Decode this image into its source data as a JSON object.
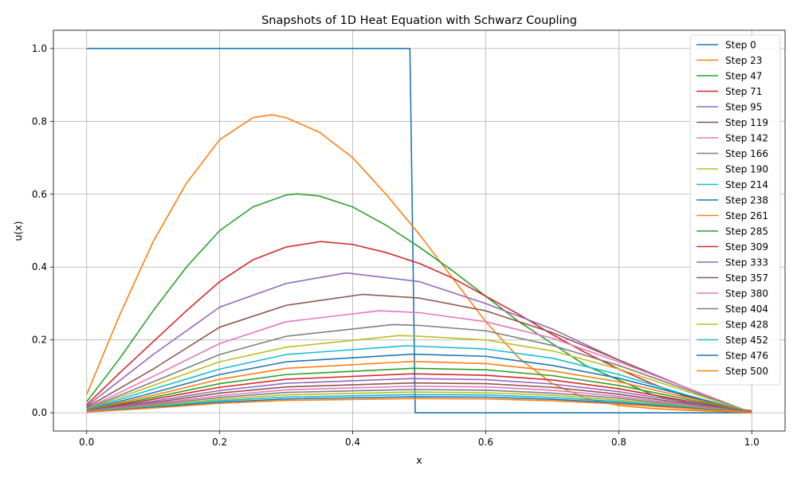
{
  "chart_data": {
    "type": "line",
    "title": "Snapshots of 1D Heat Equation with Schwarz Coupling",
    "xlabel": "x",
    "ylabel": "u(x)",
    "xlim": [
      -0.05,
      1.05
    ],
    "ylim": [
      -0.05,
      1.05
    ],
    "xticks": [
      0.0,
      0.2,
      0.4,
      0.6,
      0.8,
      1.0
    ],
    "xtick_labels": [
      "0.0",
      "0.2",
      "0.4",
      "0.6",
      "0.8",
      "1.0"
    ],
    "yticks": [
      0.0,
      0.2,
      0.4,
      0.6,
      0.8,
      1.0
    ],
    "ytick_labels": [
      "0.0",
      "0.2",
      "0.4",
      "0.6",
      "0.8",
      "1.0"
    ],
    "grid": true,
    "legend_position": "top-right",
    "series": [
      {
        "name": "Step 0",
        "color": "#1f77b4",
        "x": [
          0.0,
          0.486,
          0.494,
          1.0
        ],
        "y": [
          1.0,
          1.0,
          0.0,
          0.0
        ]
      },
      {
        "name": "Step 23",
        "color": "#ff7f0e",
        "x": [
          0.0,
          0.05,
          0.1,
          0.15,
          0.2,
          0.25,
          0.278,
          0.3,
          0.35,
          0.4,
          0.45,
          0.5,
          0.55,
          0.6,
          0.65,
          0.7,
          0.75,
          0.8,
          0.85,
          0.9,
          0.95,
          1.0
        ],
        "y": [
          0.05,
          0.27,
          0.47,
          0.63,
          0.75,
          0.81,
          0.818,
          0.81,
          0.77,
          0.7,
          0.6,
          0.49,
          0.37,
          0.25,
          0.15,
          0.08,
          0.04,
          0.02,
          0.012,
          0.007,
          0.004,
          0.0
        ]
      },
      {
        "name": "Step 47",
        "color": "#2ca02c",
        "x": [
          0.0,
          0.05,
          0.1,
          0.15,
          0.2,
          0.25,
          0.3,
          0.317,
          0.35,
          0.4,
          0.45,
          0.5,
          0.55,
          0.6,
          0.65,
          0.7,
          0.75,
          0.8,
          0.85,
          0.9,
          0.95,
          1.0
        ],
        "y": [
          0.03,
          0.15,
          0.28,
          0.4,
          0.5,
          0.565,
          0.598,
          0.601,
          0.595,
          0.565,
          0.515,
          0.455,
          0.39,
          0.32,
          0.25,
          0.19,
          0.13,
          0.09,
          0.05,
          0.028,
          0.012,
          0.0
        ]
      },
      {
        "name": "Step 71",
        "color": "#d62728",
        "x": [
          0.0,
          0.05,
          0.1,
          0.15,
          0.2,
          0.25,
          0.3,
          0.352,
          0.4,
          0.45,
          0.5,
          0.55,
          0.6,
          0.65,
          0.7,
          0.75,
          0.8,
          0.85,
          0.9,
          0.95,
          1.0
        ],
        "y": [
          0.022,
          0.11,
          0.195,
          0.28,
          0.36,
          0.42,
          0.455,
          0.47,
          0.462,
          0.44,
          0.41,
          0.37,
          0.32,
          0.27,
          0.215,
          0.165,
          0.12,
          0.08,
          0.045,
          0.02,
          0.005
        ]
      },
      {
        "name": "Step 95",
        "color": "#9467bd",
        "x": [
          0.0,
          0.1,
          0.2,
          0.3,
          0.39,
          0.5,
          0.6,
          0.7,
          0.8,
          0.9,
          1.0
        ],
        "y": [
          0.018,
          0.16,
          0.29,
          0.355,
          0.384,
          0.36,
          0.3,
          0.23,
          0.145,
          0.07,
          0.0
        ]
      },
      {
        "name": "Step 119",
        "color": "#8c564b",
        "x": [
          0.0,
          0.1,
          0.2,
          0.3,
          0.415,
          0.5,
          0.6,
          0.7,
          0.8,
          0.9,
          1.0
        ],
        "y": [
          0.015,
          0.12,
          0.235,
          0.295,
          0.325,
          0.315,
          0.28,
          0.22,
          0.145,
          0.07,
          0.0
        ]
      },
      {
        "name": "Step 142",
        "color": "#e377c2",
        "x": [
          0.0,
          0.1,
          0.2,
          0.3,
          0.44,
          0.5,
          0.6,
          0.7,
          0.8,
          0.9,
          1.0
        ],
        "y": [
          0.012,
          0.1,
          0.19,
          0.25,
          0.28,
          0.275,
          0.25,
          0.205,
          0.14,
          0.07,
          0.0
        ]
      },
      {
        "name": "Step 166",
        "color": "#7f7f7f",
        "x": [
          0.0,
          0.1,
          0.2,
          0.3,
          0.46,
          0.5,
          0.6,
          0.7,
          0.8,
          0.9,
          1.0
        ],
        "y": [
          0.011,
          0.085,
          0.16,
          0.21,
          0.242,
          0.24,
          0.225,
          0.185,
          0.13,
          0.065,
          0.0
        ]
      },
      {
        "name": "Step 190",
        "color": "#bcbd22",
        "x": [
          0.0,
          0.1,
          0.2,
          0.3,
          0.47,
          0.5,
          0.6,
          0.7,
          0.8,
          0.9,
          1.0
        ],
        "y": [
          0.01,
          0.075,
          0.14,
          0.18,
          0.212,
          0.21,
          0.2,
          0.17,
          0.12,
          0.06,
          0.0
        ]
      },
      {
        "name": "Step 214",
        "color": "#17becf",
        "x": [
          0.0,
          0.1,
          0.2,
          0.3,
          0.48,
          0.6,
          0.7,
          0.8,
          0.9,
          1.0
        ],
        "y": [
          0.009,
          0.065,
          0.12,
          0.16,
          0.184,
          0.175,
          0.15,
          0.105,
          0.05,
          0.0
        ]
      },
      {
        "name": "Step 238",
        "color": "#1f77b4",
        "x": [
          0.0,
          0.1,
          0.2,
          0.3,
          0.49,
          0.6,
          0.7,
          0.8,
          0.9,
          1.0
        ],
        "y": [
          0.008,
          0.055,
          0.105,
          0.14,
          0.161,
          0.155,
          0.13,
          0.095,
          0.048,
          0.0
        ]
      },
      {
        "name": "Step 261",
        "color": "#ff7f0e",
        "x": [
          0.0,
          0.1,
          0.2,
          0.3,
          0.49,
          0.6,
          0.7,
          0.8,
          0.9,
          1.0
        ],
        "y": [
          0.007,
          0.048,
          0.092,
          0.122,
          0.141,
          0.135,
          0.115,
          0.085,
          0.043,
          0.0
        ]
      },
      {
        "name": "Step 285",
        "color": "#2ca02c",
        "x": [
          0.0,
          0.1,
          0.2,
          0.3,
          0.49,
          0.6,
          0.7,
          0.8,
          0.9,
          1.0
        ],
        "y": [
          0.006,
          0.042,
          0.08,
          0.105,
          0.122,
          0.118,
          0.102,
          0.075,
          0.038,
          0.0
        ]
      },
      {
        "name": "Step 309",
        "color": "#d62728",
        "x": [
          0.0,
          0.1,
          0.2,
          0.3,
          0.49,
          0.6,
          0.7,
          0.8,
          0.9,
          1.0
        ],
        "y": [
          0.005,
          0.037,
          0.07,
          0.092,
          0.107,
          0.103,
          0.09,
          0.066,
          0.033,
          0.0
        ]
      },
      {
        "name": "Step 333",
        "color": "#9467bd",
        "x": [
          0.0,
          0.1,
          0.2,
          0.3,
          0.49,
          0.6,
          0.7,
          0.8,
          0.9,
          1.0
        ],
        "y": [
          0.005,
          0.032,
          0.061,
          0.081,
          0.094,
          0.091,
          0.079,
          0.058,
          0.03,
          0.0
        ]
      },
      {
        "name": "Step 357",
        "color": "#8c564b",
        "x": [
          0.0,
          0.1,
          0.2,
          0.3,
          0.49,
          0.6,
          0.7,
          0.8,
          0.9,
          1.0
        ],
        "y": [
          0.004,
          0.028,
          0.054,
          0.071,
          0.082,
          0.08,
          0.07,
          0.051,
          0.026,
          0.0
        ]
      },
      {
        "name": "Step 380",
        "color": "#e377c2",
        "x": [
          0.0,
          0.1,
          0.2,
          0.3,
          0.49,
          0.6,
          0.7,
          0.8,
          0.9,
          1.0
        ],
        "y": [
          0.004,
          0.025,
          0.047,
          0.063,
          0.073,
          0.071,
          0.062,
          0.045,
          0.023,
          0.0
        ]
      },
      {
        "name": "Step 404",
        "color": "#7f7f7f",
        "x": [
          0.0,
          0.1,
          0.2,
          0.3,
          0.49,
          0.6,
          0.7,
          0.8,
          0.9,
          1.0
        ],
        "y": [
          0.003,
          0.022,
          0.042,
          0.056,
          0.064,
          0.062,
          0.054,
          0.04,
          0.02,
          0.0
        ]
      },
      {
        "name": "Step 428",
        "color": "#bcbd22",
        "x": [
          0.0,
          0.1,
          0.2,
          0.3,
          0.49,
          0.6,
          0.7,
          0.8,
          0.9,
          1.0
        ],
        "y": [
          0.003,
          0.019,
          0.037,
          0.049,
          0.057,
          0.055,
          0.048,
          0.035,
          0.018,
          0.0
        ]
      },
      {
        "name": "Step 452",
        "color": "#17becf",
        "x": [
          0.0,
          0.1,
          0.2,
          0.3,
          0.49,
          0.6,
          0.7,
          0.8,
          0.9,
          1.0
        ],
        "y": [
          0.003,
          0.017,
          0.033,
          0.043,
          0.05,
          0.049,
          0.042,
          0.031,
          0.016,
          0.0
        ]
      },
      {
        "name": "Step 476",
        "color": "#1f77b4",
        "x": [
          0.0,
          0.1,
          0.2,
          0.3,
          0.49,
          0.6,
          0.7,
          0.8,
          0.9,
          1.0
        ],
        "y": [
          0.002,
          0.015,
          0.029,
          0.038,
          0.044,
          0.043,
          0.037,
          0.027,
          0.014,
          0.0
        ]
      },
      {
        "name": "Step 500",
        "color": "#ff7f0e",
        "x": [
          0.0,
          0.1,
          0.2,
          0.3,
          0.49,
          0.6,
          0.7,
          0.8,
          0.9,
          1.0
        ],
        "y": [
          0.002,
          0.013,
          0.026,
          0.034,
          0.039,
          0.038,
          0.033,
          0.024,
          0.012,
          0.0
        ]
      }
    ]
  }
}
